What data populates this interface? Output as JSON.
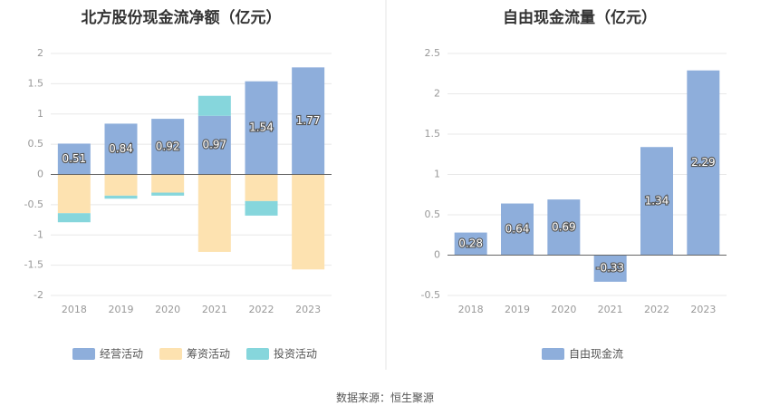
{
  "source": "数据来源：恒生聚源",
  "chart_data": [
    {
      "type": "bar",
      "stacked": true,
      "title": "北方股份现金流净额（亿元）",
      "categories": [
        "2018",
        "2019",
        "2020",
        "2021",
        "2022",
        "2023"
      ],
      "ylim": [
        -2,
        2
      ],
      "yticks": [
        "2",
        "1.5",
        "1",
        "0.5",
        "0",
        "-0.5",
        "-1",
        "-1.5",
        "-2"
      ],
      "grid": true,
      "legend_position": "bottom",
      "series": [
        {
          "name": "经营活动",
          "color": "#8eaedb",
          "values": [
            0.51,
            0.84,
            0.92,
            0.97,
            1.54,
            1.77
          ],
          "labels": [
            "0.51",
            "0.84",
            "0.92",
            "0.97",
            "1.54",
            "1.77"
          ]
        },
        {
          "name": "筹资活动",
          "color": "#fde2b0",
          "values": [
            -0.64,
            -0.35,
            -0.3,
            -1.28,
            -0.44,
            -1.57
          ]
        },
        {
          "name": "投资活动",
          "color": "#86d6dc",
          "values": [
            -0.15,
            -0.05,
            -0.05,
            0.33,
            -0.24,
            0
          ]
        }
      ]
    },
    {
      "type": "bar",
      "title": "自由现金流量（亿元）",
      "categories": [
        "2018",
        "2019",
        "2020",
        "2021",
        "2022",
        "2023"
      ],
      "ylim": [
        -0.5,
        2.5
      ],
      "yticks": [
        "2.5",
        "2",
        "1.5",
        "1",
        "0.5",
        "0",
        "-0.5"
      ],
      "grid": true,
      "legend_position": "bottom",
      "series": [
        {
          "name": "自由现金流",
          "color": "#8eaedb",
          "values": [
            0.28,
            0.64,
            0.69,
            -0.33,
            1.34,
            2.29
          ],
          "labels": [
            "0.28",
            "0.64",
            "0.69",
            "-0.33",
            "1.34",
            "2.29"
          ]
        }
      ]
    }
  ]
}
